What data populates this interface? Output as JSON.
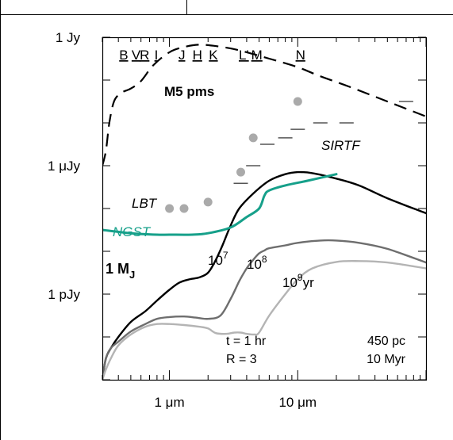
{
  "chart_data": {
    "type": "line",
    "x_scale": "log",
    "y_scale": "log",
    "xlim": [
      0.3,
      100
    ],
    "ylim": [
      1e-16,
      1
    ],
    "xticks": [
      {
        "value": 1,
        "label": "1 μm"
      },
      {
        "value": 10,
        "label": "10 μm"
      }
    ],
    "yticks": [
      {
        "value": 1,
        "label": "1 Jy"
      },
      {
        "value": 1e-06,
        "label": "1 μJy"
      },
      {
        "value": 1e-12,
        "label": "1 pJy"
      }
    ],
    "bands": [
      {
        "label": "B",
        "x": 0.44
      },
      {
        "label": "V",
        "x": 0.55
      },
      {
        "label": "R",
        "x": 0.64
      },
      {
        "label": "I",
        "x": 0.79
      },
      {
        "label": "J",
        "x": 1.25
      },
      {
        "label": "H",
        "x": 1.65
      },
      {
        "label": "K",
        "x": 2.2
      },
      {
        "label": "L'",
        "x": 3.8
      },
      {
        "label": "M",
        "x": 4.8
      },
      {
        "label": "N",
        "x": 10.5
      }
    ],
    "series": [
      {
        "name": "M5 pms",
        "style": "dashed",
        "color": "#000000",
        "x": [
          0.3,
          0.32,
          0.34,
          0.37,
          0.42,
          0.5,
          0.6,
          0.75,
          1.0,
          1.3,
          1.7,
          2.2,
          3.0,
          4.0,
          6.0,
          10.0,
          15.0,
          25.0,
          50.0,
          100.0
        ],
        "y": [
          1e-06,
          5e-06,
          0.0001,
          0.001,
          0.0025,
          0.004,
          0.009,
          0.05,
          0.2,
          0.35,
          0.45,
          0.4,
          0.3,
          0.2,
          0.1,
          0.04,
          0.015,
          0.005,
          0.001,
          0.0002
        ]
      },
      {
        "name": "1 M_J, 10^7 yr",
        "style": "solid",
        "color": "#000000",
        "x": [
          0.3,
          0.32,
          0.35,
          0.4,
          0.5,
          0.65,
          0.8,
          1.0,
          1.2,
          1.45,
          1.7,
          2.0,
          2.3,
          2.6,
          3.0,
          3.5,
          4.5,
          6.0,
          8.0,
          10.0,
          13.0,
          20.0,
          30.0,
          50.0,
          100.0
        ],
        "y": [
          1e-16,
          1e-15,
          3e-15,
          1e-14,
          5e-14,
          1.6e-13,
          5e-13,
          1.6e-12,
          3.5e-12,
          5e-12,
          6e-12,
          1e-11,
          4e-11,
          2e-10,
          1.6e-09,
          1e-08,
          5e-08,
          2e-07,
          4e-07,
          5e-07,
          4.5e-07,
          2.5e-07,
          1.2e-07,
          3e-08,
          6e-09
        ]
      },
      {
        "name": "10^8 yr",
        "style": "solid",
        "color": "#6e6e6e",
        "x": [
          0.3,
          0.32,
          0.35,
          0.4,
          0.5,
          0.65,
          0.8,
          1.0,
          1.3,
          1.6,
          2.0,
          2.5,
          3.0,
          3.5,
          4.0,
          4.5,
          5.0,
          5.5,
          6.0,
          8.0,
          10.0,
          15.0,
          20.0,
          30.0,
          50.0,
          100.0
        ],
        "y": [
          1e-16,
          1e-15,
          3e-15,
          6e-15,
          1.8e-14,
          4e-14,
          7e-14,
          8.5e-14,
          9e-14,
          8e-14,
          7e-14,
          1e-13,
          6e-13,
          4e-12,
          1.6e-11,
          4e-11,
          8e-11,
          1.1e-10,
          1.4e-10,
          1.9e-10,
          2.5e-10,
          3.2e-10,
          3.2e-10,
          2.5e-10,
          1.3e-10,
          3e-11
        ]
      },
      {
        "name": "10^9 yr",
        "style": "solid",
        "color": "#b4b4b4",
        "x": [
          0.3,
          0.32,
          0.35,
          0.4,
          0.5,
          0.65,
          0.8,
          1.0,
          1.3,
          1.7,
          2.0,
          2.3,
          2.8,
          3.2,
          3.6,
          4.0,
          4.6,
          5.0,
          6.0,
          8.0,
          10.0,
          13.0,
          20.0,
          30.0,
          50.0,
          100.0
        ],
        "y": [
          1e-16,
          3e-16,
          1e-15,
          4e-15,
          1.3e-14,
          3e-14,
          4e-14,
          4e-14,
          3.6e-14,
          3e-14,
          2.5e-14,
          1.5e-14,
          1.4e-14,
          1.6e-14,
          1.6e-14,
          1.4e-14,
          1.3e-14,
          1.6e-14,
          1e-13,
          1e-12,
          5e-12,
          1.6e-11,
          3.2e-11,
          3.5e-11,
          3e-11,
          1.6e-11
        ]
      }
    ],
    "sensitivity": [
      {
        "name": "NGST",
        "style": "solid",
        "color": "#16a08a",
        "x": [
          0.3,
          0.5,
          0.8,
          1.0,
          1.5,
          2.0,
          3.0,
          4.0,
          5.0,
          5.5,
          6.0,
          8.0,
          12.0,
          20.0
        ],
        "y": [
          1e-09,
          7e-10,
          6e-10,
          6e-10,
          6e-10,
          7e-10,
          1.3e-09,
          4e-09,
          1e-08,
          4e-08,
          7e-08,
          1.2e-07,
          2e-07,
          4e-07
        ]
      },
      {
        "name": "LBT",
        "style": "dots",
        "color": "#aaaaaa",
        "x": [
          1.0,
          1.3,
          2.0
        ],
        "y": [
          1e-08,
          1e-08,
          2e-08
        ]
      },
      {
        "name": "SIRTF",
        "style": "dots",
        "color": "#aaaaaa",
        "x": [
          3.6,
          4.5,
          10.0
        ],
        "y": [
          5e-07,
          2e-05,
          0.001
        ]
      },
      {
        "name": "SIRTF",
        "style": "dashes",
        "color": "#555555",
        "x": [
          3.6,
          4.5,
          5.8,
          8.0,
          10.0,
          15.0,
          24.0,
          70.0
        ],
        "y": [
          1.5e-07,
          1e-06,
          1e-05,
          2e-05,
          5e-05,
          0.0001,
          0.0001,
          0.001
        ]
      }
    ]
  },
  "annotations": {
    "m5": "M5 pms",
    "sirtf": "SIRTF",
    "lbt": "LBT",
    "ngst": "NGST",
    "mass": "1 M",
    "mass_sub": "J",
    "age7_base": "10",
    "age7_exp": "7",
    "age8_base": "10",
    "age8_exp": "8",
    "age9_base": "10",
    "age9_exp": "9",
    "age9_unit": "yr",
    "time": "t = 1 hr",
    "ratio": "R = 3",
    "distance": "450 pc",
    "age": "10 Myr"
  }
}
